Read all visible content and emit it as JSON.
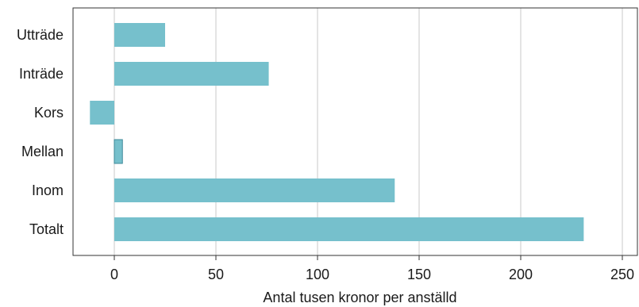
{
  "chart_data": {
    "type": "bar",
    "orientation": "horizontal",
    "categories": [
      "Utträde",
      "Inträde",
      "Kors",
      "Mellan",
      "Inom",
      "Totalt"
    ],
    "values": [
      25,
      76,
      -12,
      4,
      138,
      231
    ],
    "xlabel": "Antal tusen kronor per anställd",
    "ylabel": "",
    "xlim": [
      -20,
      255
    ],
    "xticks": [
      0,
      50,
      100,
      150,
      200,
      250
    ],
    "grid": "vertical",
    "bar_color": "#76c0cc",
    "bar_edge_color": "#3e8a99"
  }
}
